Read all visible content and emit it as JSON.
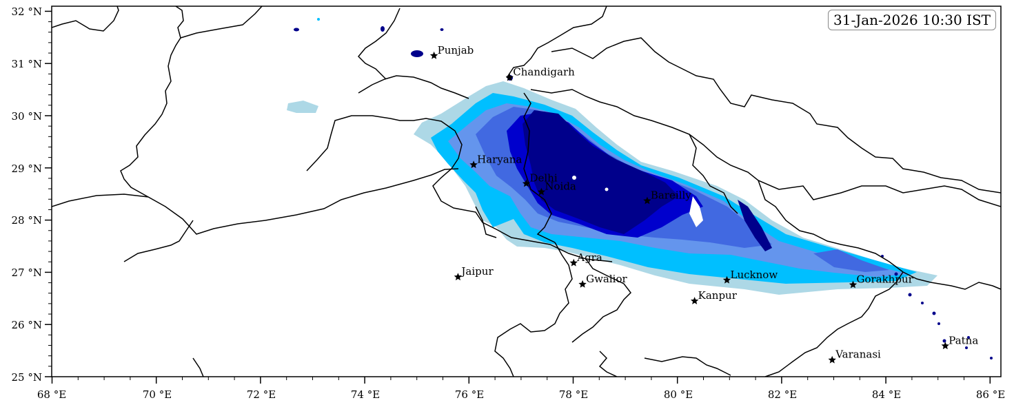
{
  "timestamp": "31-Jan-2026 10:30 IST",
  "axes": {
    "x_ticks": [
      "68 °E",
      "70 °E",
      "72 °E",
      "74 °E",
      "76 °E",
      "78 °E",
      "80 °E",
      "82 °E",
      "84 °E",
      "86 °E"
    ],
    "y_ticks": [
      "32 °N",
      "31 °N",
      "30 °N",
      "29 °N",
      "28 °N",
      "27 °N",
      "26 °N",
      "25 °N"
    ],
    "lon_range": [
      68,
      86.2
    ],
    "lat_range": [
      25,
      32.1
    ]
  },
  "cities": [
    {
      "name": "Punjab",
      "lon": 75.33,
      "lat": 31.15
    },
    {
      "name": "Chandigarh",
      "lon": 76.78,
      "lat": 30.73
    },
    {
      "name": "Haryana",
      "lon": 76.09,
      "lat": 29.06
    },
    {
      "name": "Delhi",
      "lon": 77.1,
      "lat": 28.7
    },
    {
      "name": "Noida",
      "lon": 77.39,
      "lat": 28.54
    },
    {
      "name": "Bareilly",
      "lon": 79.42,
      "lat": 28.37
    },
    {
      "name": "Agra",
      "lon": 78.01,
      "lat": 27.18
    },
    {
      "name": "Jaipur",
      "lon": 75.79,
      "lat": 26.91
    },
    {
      "name": "Gwalior",
      "lon": 78.18,
      "lat": 26.77
    },
    {
      "name": "Lucknow",
      "lon": 80.95,
      "lat": 26.85
    },
    {
      "name": "Gorakhpur",
      "lon": 83.37,
      "lat": 26.76
    },
    {
      "name": "Kanpur",
      "lon": 80.33,
      "lat": 26.45
    },
    {
      "name": "Varanasi",
      "lon": 82.97,
      "lat": 25.32
    },
    {
      "name": "Patna",
      "lon": 85.14,
      "lat": 25.59
    }
  ],
  "shading_colors": [
    "#add8e6",
    "#00bfff",
    "#6495ed",
    "#4169e1",
    "#0000cd",
    "#00008b"
  ]
}
